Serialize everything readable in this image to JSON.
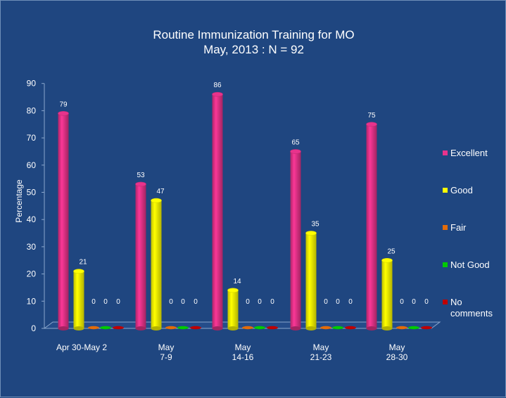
{
  "chart_data": {
    "type": "bar",
    "title": "Routine Immunization Training for MO",
    "subtitle": "May, 2013 : N = 92",
    "ylabel": "Percentage",
    "xlabel": "",
    "ylim": [
      0,
      90
    ],
    "yticks": [
      0,
      10,
      20,
      30,
      40,
      50,
      60,
      70,
      80,
      90
    ],
    "categories": [
      [
        "Apr 30-May  2"
      ],
      [
        "May",
        "7-9"
      ],
      [
        "May",
        "14-16"
      ],
      [
        "May",
        "21-23"
      ],
      [
        "May",
        "28-30"
      ]
    ],
    "series": [
      {
        "name": "Excellent",
        "color": "#e8338c",
        "values": [
          79,
          53,
          86,
          65,
          75
        ]
      },
      {
        "name": "Good",
        "color": "#ffff00",
        "values": [
          21,
          47,
          14,
          35,
          25
        ]
      },
      {
        "name": "Fair",
        "color": "#e36c0a",
        "values": [
          0,
          0,
          0,
          0,
          0
        ]
      },
      {
        "name": "Not Good",
        "color": "#00cc00",
        "values": [
          0,
          0,
          0,
          0,
          0
        ]
      },
      {
        "name": "No comments",
        "color": "#c00000",
        "values": [
          0,
          0,
          0,
          0,
          0
        ]
      }
    ],
    "legend_position": "right",
    "grid": false
  }
}
